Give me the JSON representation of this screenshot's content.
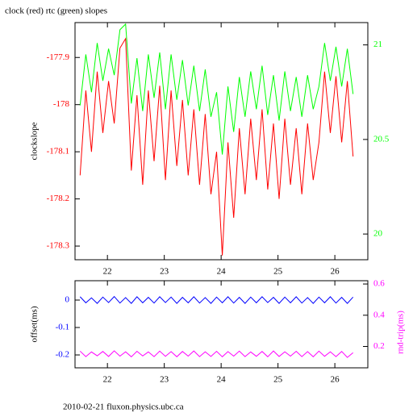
{
  "title": "clock (red) rtc (green) slopes",
  "footer": "2010-02-21 fluxon.physics.ubc.ca",
  "chart_data": [
    {
      "type": "line",
      "ylabel": "clockslope",
      "x": [
        21.52,
        21.62,
        21.72,
        21.82,
        21.92,
        22.02,
        22.12,
        22.22,
        22.32,
        22.42,
        22.52,
        22.62,
        22.72,
        22.82,
        22.92,
        23.02,
        23.12,
        23.22,
        23.32,
        23.42,
        23.52,
        23.62,
        23.72,
        23.82,
        23.92,
        24.02,
        24.12,
        24.22,
        24.32,
        24.42,
        24.52,
        24.62,
        24.72,
        24.82,
        24.92,
        25.02,
        25.12,
        25.22,
        25.32,
        25.42,
        25.52,
        25.62,
        25.72,
        25.82,
        25.92,
        26.02,
        26.12,
        26.22,
        26.32
      ],
      "series": [
        {
          "color": "#00ff00",
          "axis": "y2",
          "values": [
            20.68,
            20.95,
            20.75,
            21.01,
            20.81,
            20.98,
            20.84,
            21.08,
            21.11,
            20.69,
            20.93,
            20.65,
            20.95,
            20.72,
            20.96,
            20.66,
            20.95,
            20.71,
            20.92,
            20.68,
            20.89,
            20.65,
            20.87,
            20.62,
            20.75,
            20.42,
            20.78,
            20.54,
            20.83,
            20.62,
            20.86,
            20.66,
            20.89,
            20.63,
            20.84,
            20.6,
            20.86,
            20.65,
            20.83,
            20.62,
            20.84,
            20.66,
            20.78,
            21.01,
            20.81,
            20.99,
            20.78,
            20.98,
            20.74
          ]
        },
        {
          "color": "#ff0000",
          "values": [
            -178.15,
            -177.97,
            -178.1,
            -177.93,
            -178.06,
            -177.95,
            -178.04,
            -177.88,
            -177.86,
            -178.14,
            -177.98,
            -178.17,
            -177.97,
            -178.12,
            -177.96,
            -178.16,
            -177.97,
            -178.13,
            -177.99,
            -178.15,
            -178.01,
            -178.17,
            -178.02,
            -178.19,
            -178.1,
            -178.32,
            -178.08,
            -178.24,
            -178.05,
            -178.19,
            -178.03,
            -178.16,
            -178.01,
            -178.18,
            -178.04,
            -178.2,
            -178.03,
            -178.17,
            -178.05,
            -178.19,
            -178.04,
            -178.16,
            -178.08,
            -177.93,
            -178.06,
            -177.94,
            -178.08,
            -177.95,
            -178.11
          ]
        }
      ],
      "xlim": [
        21.43,
        26.58
      ],
      "xticks": [
        22,
        23,
        24,
        25,
        26
      ],
      "ylim": [
        -178.329,
        -177.826
      ],
      "yticks": [
        -177.9,
        -178,
        -178.1,
        -178.2,
        -178.3
      ],
      "ytick_color": "#ff0000",
      "y2lim": [
        19.864,
        21.118
      ],
      "y2ticks": [
        20,
        20.5,
        21
      ],
      "y2tick_color": "#00ff00"
    },
    {
      "type": "line",
      "ylabel": "offset(ms)",
      "y2label": "rnd-trip(ms)",
      "x": [
        21.52,
        21.62,
        21.72,
        21.82,
        21.92,
        22.02,
        22.12,
        22.22,
        22.32,
        22.42,
        22.52,
        22.62,
        22.72,
        22.82,
        22.92,
        23.02,
        23.12,
        23.22,
        23.32,
        23.42,
        23.52,
        23.62,
        23.72,
        23.82,
        23.92,
        24.02,
        24.12,
        24.22,
        24.32,
        24.42,
        24.52,
        24.62,
        24.72,
        24.82,
        24.92,
        25.02,
        25.12,
        25.22,
        25.32,
        25.42,
        25.52,
        25.62,
        25.72,
        25.82,
        25.92,
        26.02,
        26.12,
        26.22,
        26.32
      ],
      "series": [
        {
          "color": "#0000ff",
          "values": [
            0.012,
            -0.01,
            0.008,
            -0.012,
            0.011,
            -0.009,
            0.013,
            -0.011,
            0.009,
            -0.012,
            0.012,
            -0.01,
            0.01,
            -0.011,
            0.012,
            -0.009,
            0.011,
            -0.012,
            0.01,
            -0.01,
            0.012,
            -0.011,
            0.009,
            -0.012,
            0.011,
            -0.01,
            0.012,
            -0.011,
            0.01,
            -0.012,
            0.011,
            -0.01,
            0.012,
            -0.009,
            0.01,
            -0.012,
            0.011,
            -0.01,
            0.012,
            -0.011,
            0.009,
            -0.012,
            0.011,
            -0.01,
            0.012,
            -0.011,
            0.01,
            -0.012,
            0.011
          ]
        },
        {
          "color": "#ff00ff",
          "axis": "y2",
          "values": [
            0.17,
            0.135,
            0.165,
            0.14,
            0.168,
            0.136,
            0.172,
            0.138,
            0.166,
            0.134,
            0.169,
            0.139,
            0.165,
            0.135,
            0.17,
            0.137,
            0.167,
            0.134,
            0.168,
            0.138,
            0.171,
            0.135,
            0.166,
            0.136,
            0.169,
            0.134,
            0.167,
            0.138,
            0.17,
            0.135,
            0.165,
            0.137,
            0.168,
            0.134,
            0.171,
            0.136,
            0.166,
            0.138,
            0.169,
            0.135,
            0.167,
            0.134,
            0.17,
            0.137,
            0.166,
            0.135,
            0.168,
            0.13,
            0.16
          ]
        }
      ],
      "xlim": [
        21.43,
        26.58
      ],
      "xticks": [
        22,
        23,
        24,
        25,
        26
      ],
      "ylim": [
        -0.247,
        0.0706
      ],
      "yticks": [
        0,
        -0.1,
        -0.2
      ],
      "ytick_color": "#0000ff",
      "y2lim": [
        0.0632,
        0.621
      ],
      "y2ticks": [
        0.2,
        0.4,
        0.6
      ],
      "y2tick_color": "#ff00ff"
    }
  ]
}
